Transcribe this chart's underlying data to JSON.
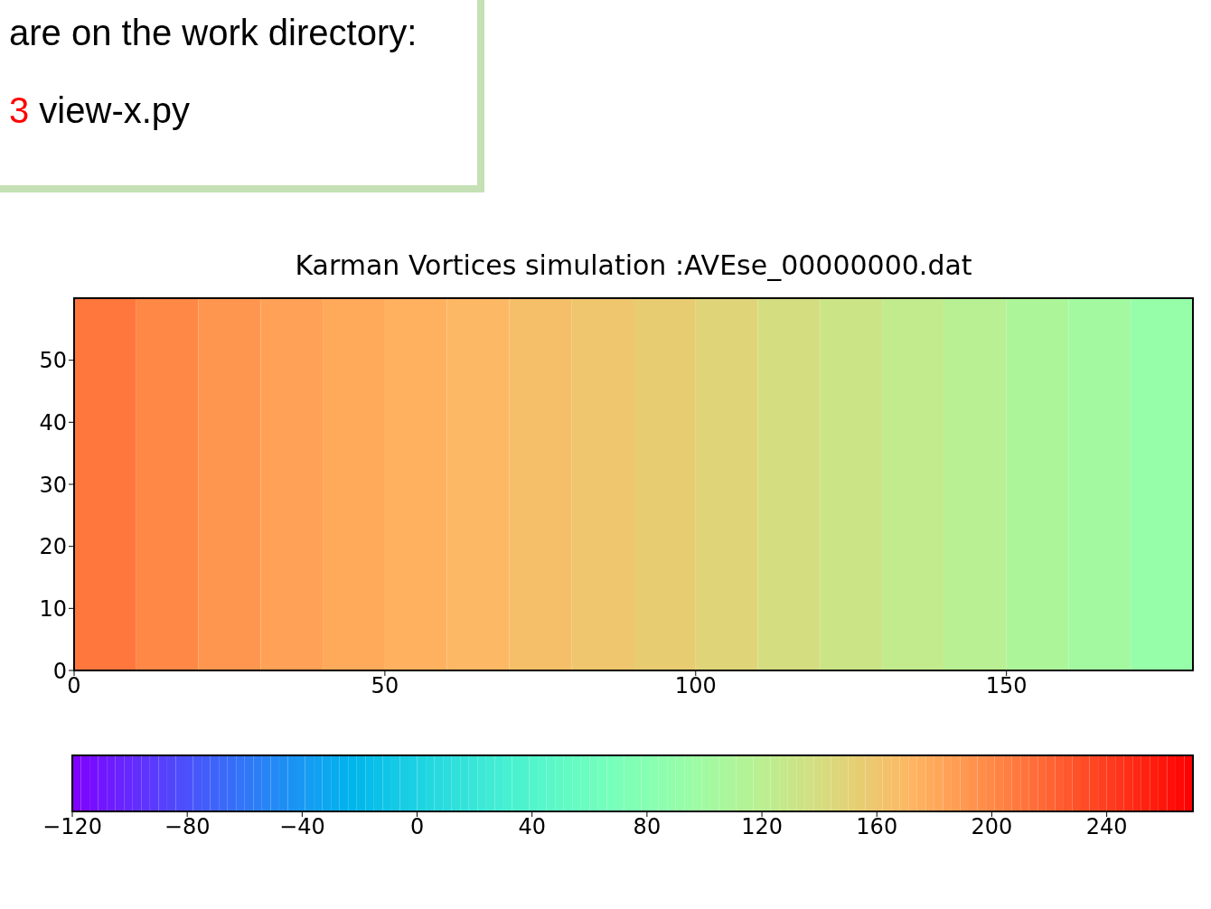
{
  "chart_data": {
    "type": "heatmap",
    "title": "Karman Vortices simulation :AVEse_00000000.dat",
    "annotations": [
      "are on the work directory:",
      "3 view-x.py"
    ],
    "x": [
      5,
      15,
      25,
      35,
      45,
      55,
      65,
      75,
      85,
      95,
      105,
      115,
      125,
      135,
      145,
      155,
      165,
      175
    ],
    "cells": [
      [
        210,
        200,
        192,
        185,
        180,
        175,
        170,
        165,
        160,
        155,
        148,
        140,
        133,
        125,
        118,
        110,
        102,
        92
      ]
    ],
    "xlim": [
      0,
      180
    ],
    "xticks": [
      0,
      50,
      100,
      150
    ],
    "ylim": [
      0,
      60
    ],
    "yticks": [
      0,
      10,
      20,
      30,
      40,
      50
    ],
    "clim": [
      -120,
      270
    ],
    "cticks": [
      {
        "value": -120,
        "label": "−120"
      },
      {
        "value": -80,
        "label": "−80"
      },
      {
        "value": -40,
        "label": "−40"
      },
      0,
      40,
      80,
      120,
      160,
      200,
      240
    ]
  }
}
